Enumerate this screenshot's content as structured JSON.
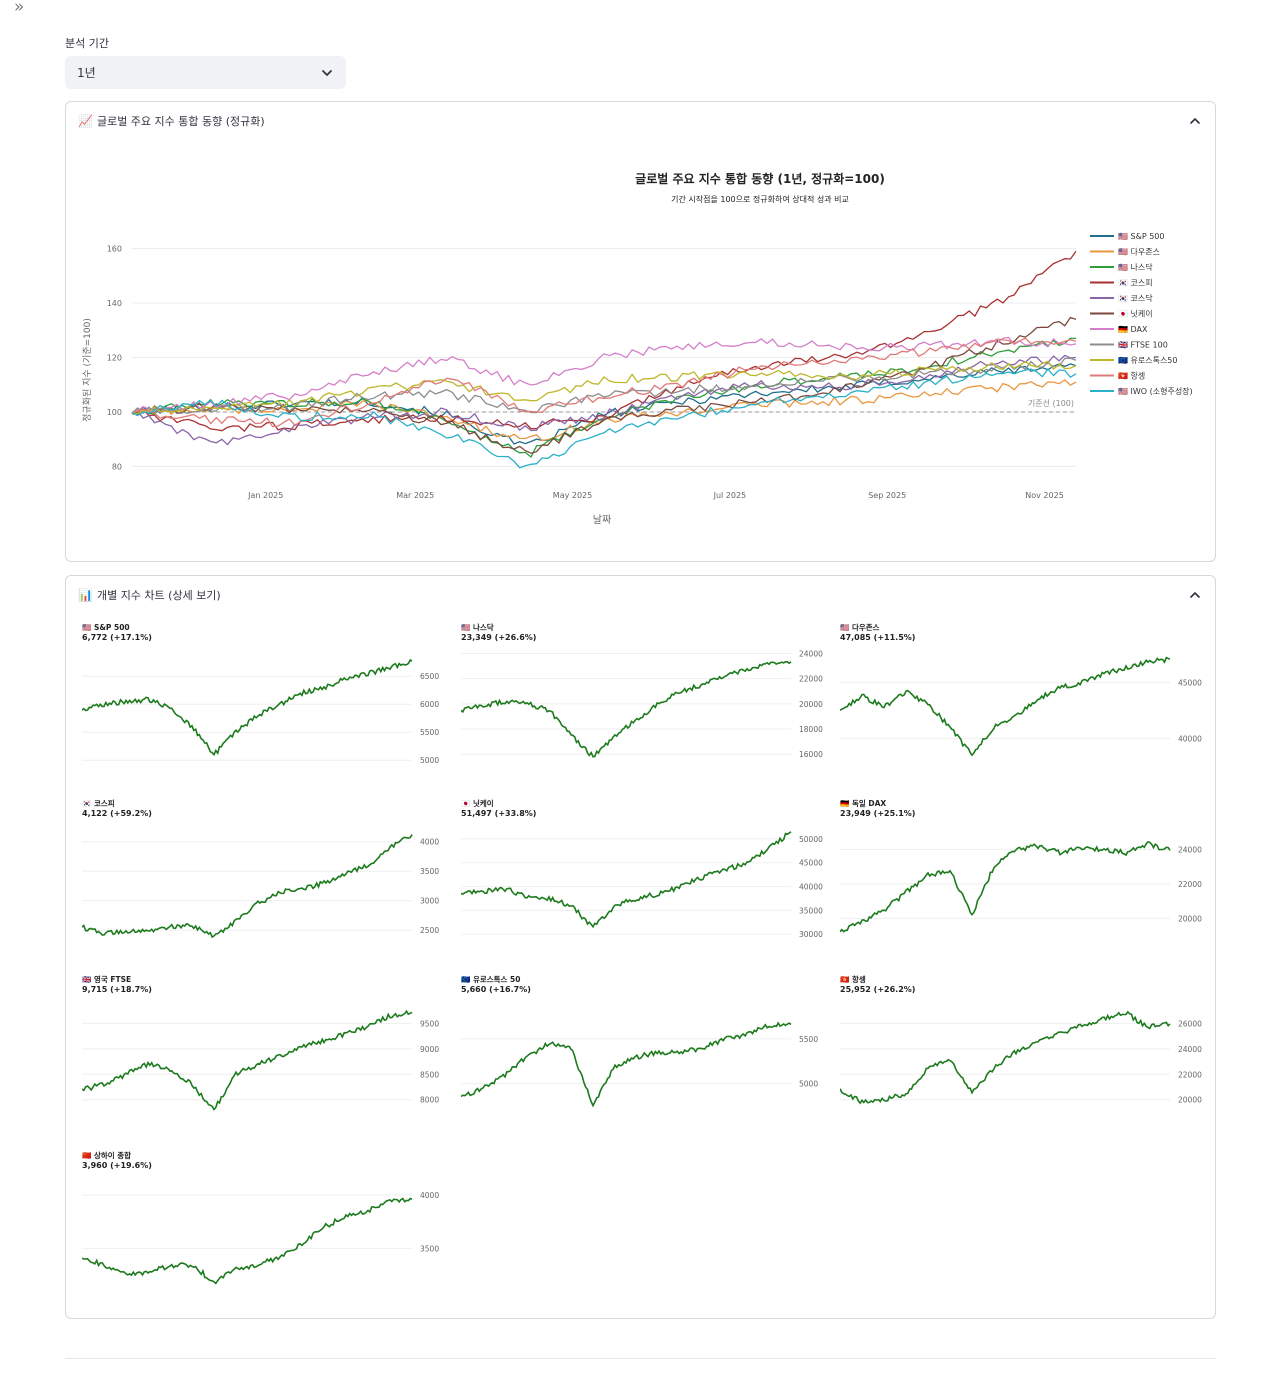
{
  "sidebar": {
    "toggle_label": "»"
  },
  "period": {
    "label": "분석 기간",
    "selected": "1년"
  },
  "colors": {
    "sp500": "#1f6e8c",
    "dow": "#e9973e",
    "nasdaq": "#2e9d3a",
    "kospi": "#a83232",
    "kosdaq": "#8b65a8",
    "nikkei": "#7a4a3d",
    "dax": "#d47fc8",
    "ftse": "#8c8c8c",
    "euro": "#bdb729",
    "hangseng": "#e07a7a",
    "iwo": "#2ab0c9",
    "mini": "#1d7a1d"
  },
  "combined": {
    "header_icon": "📈",
    "header_title": "글로벌 주요 지수 통합 동향 (정규화)",
    "chart_title": "글로벌 주요 지수 통합 동향 (1년, 정규화=100)",
    "chart_subtitle": "기간 시작점을 100으로 정규화하여 상대적 성과 비교",
    "ylabel": "정규화된 지수 (기준=100)",
    "xlabel": "날짜",
    "baseline_label": "기준선 (100)"
  },
  "individual": {
    "header_icon": "📊",
    "header_title": "개별 지수 차트 (상세 보기)"
  },
  "chart_data": [
    {
      "type": "line",
      "title": "글로벌 주요 지수 통합 동향 (1년, 정규화=100)",
      "xlabel": "날짜",
      "ylabel": "정규화된 지수 (기준=100)",
      "x_ticks": [
        "Jan 2025",
        "Mar 2025",
        "May 2025",
        "Jul 2025",
        "Sep 2025",
        "Nov 2025"
      ],
      "y_ticks": [
        80,
        100,
        120,
        140,
        160
      ],
      "ylim": [
        75,
        165
      ],
      "x_points": [
        "Nov 2024",
        "Dec 2024",
        "Jan 2025",
        "Feb 2025",
        "Mar 2025",
        "Apr 2025",
        "May 2025",
        "Jun 2025",
        "Jul 2025",
        "Aug 2025",
        "Sep 2025",
        "Oct 2025",
        "Nov 2025"
      ],
      "series": [
        {
          "key": "sp500",
          "name": "🇺🇸 S&P 500",
          "values": [
            100,
            102,
            103,
            104,
            99,
            87,
            99,
            104,
            107,
            109,
            112,
            115,
            117
          ]
        },
        {
          "key": "dow",
          "name": "🇺🇸 다우존스",
          "values": [
            100,
            101,
            101,
            103,
            98,
            89,
            97,
            100,
            103,
            104,
            106,
            109,
            111
          ]
        },
        {
          "key": "nasdaq",
          "name": "🇺🇸 나스닥",
          "values": [
            100,
            103,
            103,
            104,
            97,
            84,
            98,
            105,
            110,
            113,
            116,
            122,
            127
          ]
        },
        {
          "key": "kospi",
          "name": "🇰🇷 코스피",
          "values": [
            100,
            94,
            95,
            97,
            98,
            95,
            98,
            110,
            117,
            120,
            128,
            140,
            159
          ]
        },
        {
          "key": "kosdaq",
          "name": "🇰🇷 코스닥",
          "values": [
            100,
            88,
            94,
            98,
            100,
            94,
            99,
            106,
            110,
            109,
            113,
            118,
            120
          ]
        },
        {
          "key": "nikkei",
          "name": "🇯🇵 닛케이",
          "values": [
            100,
            102,
            101,
            100,
            96,
            85,
            97,
            101,
            104,
            108,
            115,
            125,
            134
          ]
        },
        {
          "key": "dax",
          "name": "🇩🇪 DAX",
          "values": [
            100,
            103,
            106,
            114,
            120,
            110,
            120,
            124,
            126,
            124,
            124,
            126,
            125
          ]
        },
        {
          "key": "ftse",
          "name": "🇬🇧 FTSE 100",
          "values": [
            100,
            101,
            102,
            106,
            107,
            100,
            106,
            108,
            110,
            112,
            114,
            116,
            119
          ]
        },
        {
          "key": "euro",
          "name": "🇪🇺 유로스톡스50",
          "values": [
            100,
            101,
            103,
            108,
            111,
            104,
            112,
            113,
            114,
            113,
            115,
            117,
            117
          ]
        },
        {
          "key": "hangseng",
          "name": "🇭🇰 항셍",
          "values": [
            100,
            97,
            96,
            103,
            113,
            100,
            106,
            110,
            117,
            118,
            122,
            126,
            126
          ]
        },
        {
          "key": "iwo",
          "name": "🇺🇸 IWO (소형주성장)",
          "values": [
            100,
            104,
            98,
            99,
            92,
            80,
            92,
            98,
            104,
            106,
            110,
            115,
            114
          ]
        }
      ]
    },
    {
      "type": "line",
      "label": "🇺🇸 S&P 500",
      "value_text": "6,772 (+17.1%)",
      "y_ticks": [
        5000,
        5500,
        6000,
        6500
      ],
      "ylim": [
        4950,
        6950
      ],
      "values": [
        5900,
        6000,
        6050,
        6080,
        5950,
        5600,
        5100,
        5500,
        5800,
        6000,
        6200,
        6300,
        6450,
        6550,
        6650,
        6772
      ]
    },
    {
      "type": "line",
      "label": "🇺🇸 나스닥",
      "value_text": "23,349 (+26.6%)",
      "y_ticks": [
        16000,
        18000,
        20000,
        22000,
        24000
      ],
      "ylim": [
        15300,
        24200
      ],
      "values": [
        19500,
        19800,
        20200,
        20000,
        19500,
        17500,
        15800,
        17500,
        18800,
        20000,
        21000,
        21500,
        22200,
        22800,
        23200,
        23349
      ]
    },
    {
      "type": "line",
      "label": "🇺🇸 다우존스",
      "value_text": "47,085 (+11.5%)",
      "y_ticks": [
        40000,
        45000
      ],
      "ylim": [
        37800,
        47800
      ],
      "values": [
        42500,
        43800,
        42800,
        44200,
        43000,
        41000,
        38500,
        41000,
        42000,
        43500,
        44500,
        45000,
        45800,
        46300,
        46800,
        47085
      ]
    },
    {
      "type": "line",
      "label": "🇰🇷 코스피",
      "value_text": "4,122 (+59.2%)",
      "y_ticks": [
        2500,
        3000,
        3500,
        4000
      ],
      "ylim": [
        2350,
        4250
      ],
      "values": [
        2550,
        2450,
        2470,
        2500,
        2550,
        2570,
        2400,
        2650,
        2950,
        3150,
        3200,
        3300,
        3450,
        3600,
        3900,
        4122
      ]
    },
    {
      "type": "line",
      "label": "🇯🇵 닛케이",
      "value_text": "51,497 (+33.8%)",
      "y_ticks": [
        30000,
        35000,
        40000,
        45000,
        50000
      ],
      "ylim": [
        29000,
        52500
      ],
      "values": [
        38500,
        39000,
        39500,
        38000,
        37500,
        36000,
        31500,
        36000,
        37500,
        38500,
        40000,
        42000,
        43500,
        45000,
        48000,
        51497
      ]
    },
    {
      "type": "line",
      "label": "🇩🇪 독일 DAX",
      "value_text": "23,949 (+25.1%)",
      "y_ticks": [
        20000,
        22000,
        24000
      ],
      "ylim": [
        18800,
        25300
      ],
      "values": [
        19200,
        19800,
        20500,
        21500,
        22500,
        22800,
        20200,
        23000,
        24000,
        24200,
        23800,
        24100,
        24000,
        23800,
        24300,
        23949
      ]
    },
    {
      "type": "line",
      "label": "🇬🇧 영국 FTSE",
      "value_text": "9,715 (+18.7%)",
      "y_ticks": [
        8000,
        8500,
        9000,
        9500
      ],
      "ylim": [
        7700,
        9900
      ],
      "values": [
        8200,
        8300,
        8500,
        8700,
        8600,
        8300,
        7800,
        8500,
        8700,
        8850,
        9050,
        9150,
        9300,
        9450,
        9650,
        9715
      ]
    },
    {
      "type": "line",
      "label": "🇪🇺 유로스톡스 50",
      "value_text": "5,660 (+16.7%)",
      "y_ticks": [
        5000,
        5500
      ],
      "ylim": [
        4650,
        5900
      ],
      "values": [
        4850,
        4950,
        5100,
        5300,
        5450,
        5400,
        4750,
        5200,
        5300,
        5350,
        5350,
        5400,
        5500,
        5550,
        5650,
        5660
      ]
    },
    {
      "type": "line",
      "label": "🇭🇰 항셍",
      "value_text": "25,952 (+26.2%)",
      "y_ticks": [
        20000,
        22000,
        24000,
        26000
      ],
      "ylim": [
        18800,
        27600
      ],
      "values": [
        20800,
        19800,
        20000,
        20500,
        22500,
        23200,
        20500,
        22500,
        23800,
        24500,
        25200,
        25800,
        26400,
        26800,
        25700,
        25952
      ]
    },
    {
      "type": "line",
      "label": "🇨🇳 상하이 종합",
      "value_text": "3,960 (+19.6%)",
      "y_ticks": [
        3500,
        4000
      ],
      "ylim": [
        3100,
        4150
      ],
      "values": [
        3400,
        3350,
        3250,
        3280,
        3330,
        3350,
        3180,
        3300,
        3350,
        3420,
        3550,
        3700,
        3800,
        3850,
        3950,
        3960
      ]
    }
  ]
}
